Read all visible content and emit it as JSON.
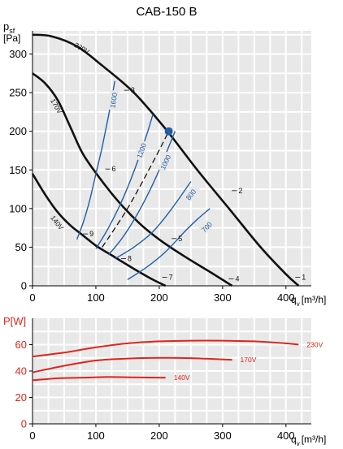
{
  "title": "CAB-150 B",
  "chart_data": [
    {
      "type": "line",
      "ylabel_main": "p",
      "ylabel_sub": "sf",
      "ylabel_unit": "[Pa]",
      "xlabel_main": "q",
      "xlabel_sub": "v",
      "xlabel_unit": "[m³/h]",
      "xlim": [
        0,
        440
      ],
      "ylim": [
        0,
        330
      ],
      "xticks": [
        "0",
        "100",
        "200",
        "300",
        "400"
      ],
      "yticks": [
        "0",
        "50",
        "100",
        "150",
        "200",
        "250",
        "300"
      ],
      "fan_curves": [
        {
          "name": "230V",
          "x": [
            0,
            30,
            70,
            110,
            160,
            210,
            260,
            310,
            360,
            400,
            420
          ],
          "y": [
            325,
            323,
            310,
            285,
            250,
            203,
            150,
            100,
            50,
            15,
            0
          ]
        },
        {
          "name": "170V",
          "x": [
            0,
            20,
            40,
            60,
            80,
            110,
            140,
            170,
            200,
            240,
            280,
            315
          ],
          "y": [
            275,
            262,
            240,
            205,
            170,
            135,
            105,
            80,
            60,
            38,
            18,
            0
          ]
        },
        {
          "name": "140V",
          "x": [
            0,
            20,
            40,
            60,
            80,
            100,
            120,
            140,
            160,
            190,
            210
          ],
          "y": [
            145,
            118,
            95,
            78,
            65,
            52,
            42,
            32,
            22,
            8,
            0
          ]
        }
      ],
      "system_curves": [
        {
          "name": "1600",
          "x": [
            70,
            80,
            90,
            100,
            110,
            120,
            130
          ],
          "y": [
            60,
            82,
            110,
            145,
            180,
            220,
            265
          ]
        },
        {
          "name": "1200",
          "x": [
            100,
            120,
            140,
            160,
            180,
            190
          ],
          "y": [
            48,
            75,
            108,
            148,
            195,
            222
          ]
        },
        {
          "name": "1000",
          "x": [
            120,
            140,
            160,
            180,
            200,
            215,
            225
          ],
          "y": [
            40,
            60,
            85,
            115,
            150,
            180,
            200
          ]
        },
        {
          "name": "800",
          "x": [
            130,
            160,
            190,
            220,
            250
          ],
          "y": [
            35,
            50,
            70,
            100,
            135
          ]
        },
        {
          "name": "700",
          "x": [
            150,
            180,
            210,
            240,
            260,
            280
          ],
          "y": [
            8,
            24,
            44,
            70,
            86,
            100
          ]
        }
      ],
      "dashed_curve": {
        "x": [
          110,
          150,
          190,
          215
        ],
        "y": [
          50,
          100,
          160,
          200
        ]
      },
      "operating_point": {
        "x": 215,
        "y": 200
      },
      "point_labels": [
        {
          "label": "1",
          "x": 425,
          "y": 8
        },
        {
          "label": "2",
          "x": 325,
          "y": 120
        },
        {
          "label": "3",
          "x": 155,
          "y": 250
        },
        {
          "label": "4",
          "x": 320,
          "y": 6
        },
        {
          "label": "5",
          "x": 230,
          "y": 58
        },
        {
          "label": "6",
          "x": 125,
          "y": 148
        },
        {
          "label": "7",
          "x": 215,
          "y": 8
        },
        {
          "label": "8",
          "x": 150,
          "y": 32
        },
        {
          "label": "9",
          "x": 90,
          "y": 64
        }
      ]
    },
    {
      "type": "line",
      "ylabel": "P[W]",
      "xlabel_main": "q",
      "xlabel_sub": "v",
      "xlabel_unit": "[m³/h]",
      "xlim": [
        0,
        440
      ],
      "ylim": [
        0,
        80
      ],
      "xticks": [
        "0",
        "100",
        "200",
        "300",
        "400"
      ],
      "yticks": [
        "0",
        "20",
        "40",
        "60"
      ],
      "series": [
        {
          "name": "230V",
          "x": [
            0,
            50,
            100,
            150,
            200,
            250,
            300,
            350,
            400,
            420
          ],
          "y": [
            51,
            54,
            58,
            61,
            62.5,
            63,
            63,
            62.5,
            61,
            60
          ]
        },
        {
          "name": "170V",
          "x": [
            0,
            50,
            100,
            150,
            200,
            250,
            315
          ],
          "y": [
            39,
            44,
            48,
            49.5,
            50,
            49.8,
            48.5
          ]
        },
        {
          "name": "140V",
          "x": [
            0,
            40,
            80,
            120,
            160,
            200,
            210
          ],
          "y": [
            33,
            34.5,
            35,
            35.5,
            35.2,
            35,
            35
          ]
        }
      ]
    }
  ]
}
